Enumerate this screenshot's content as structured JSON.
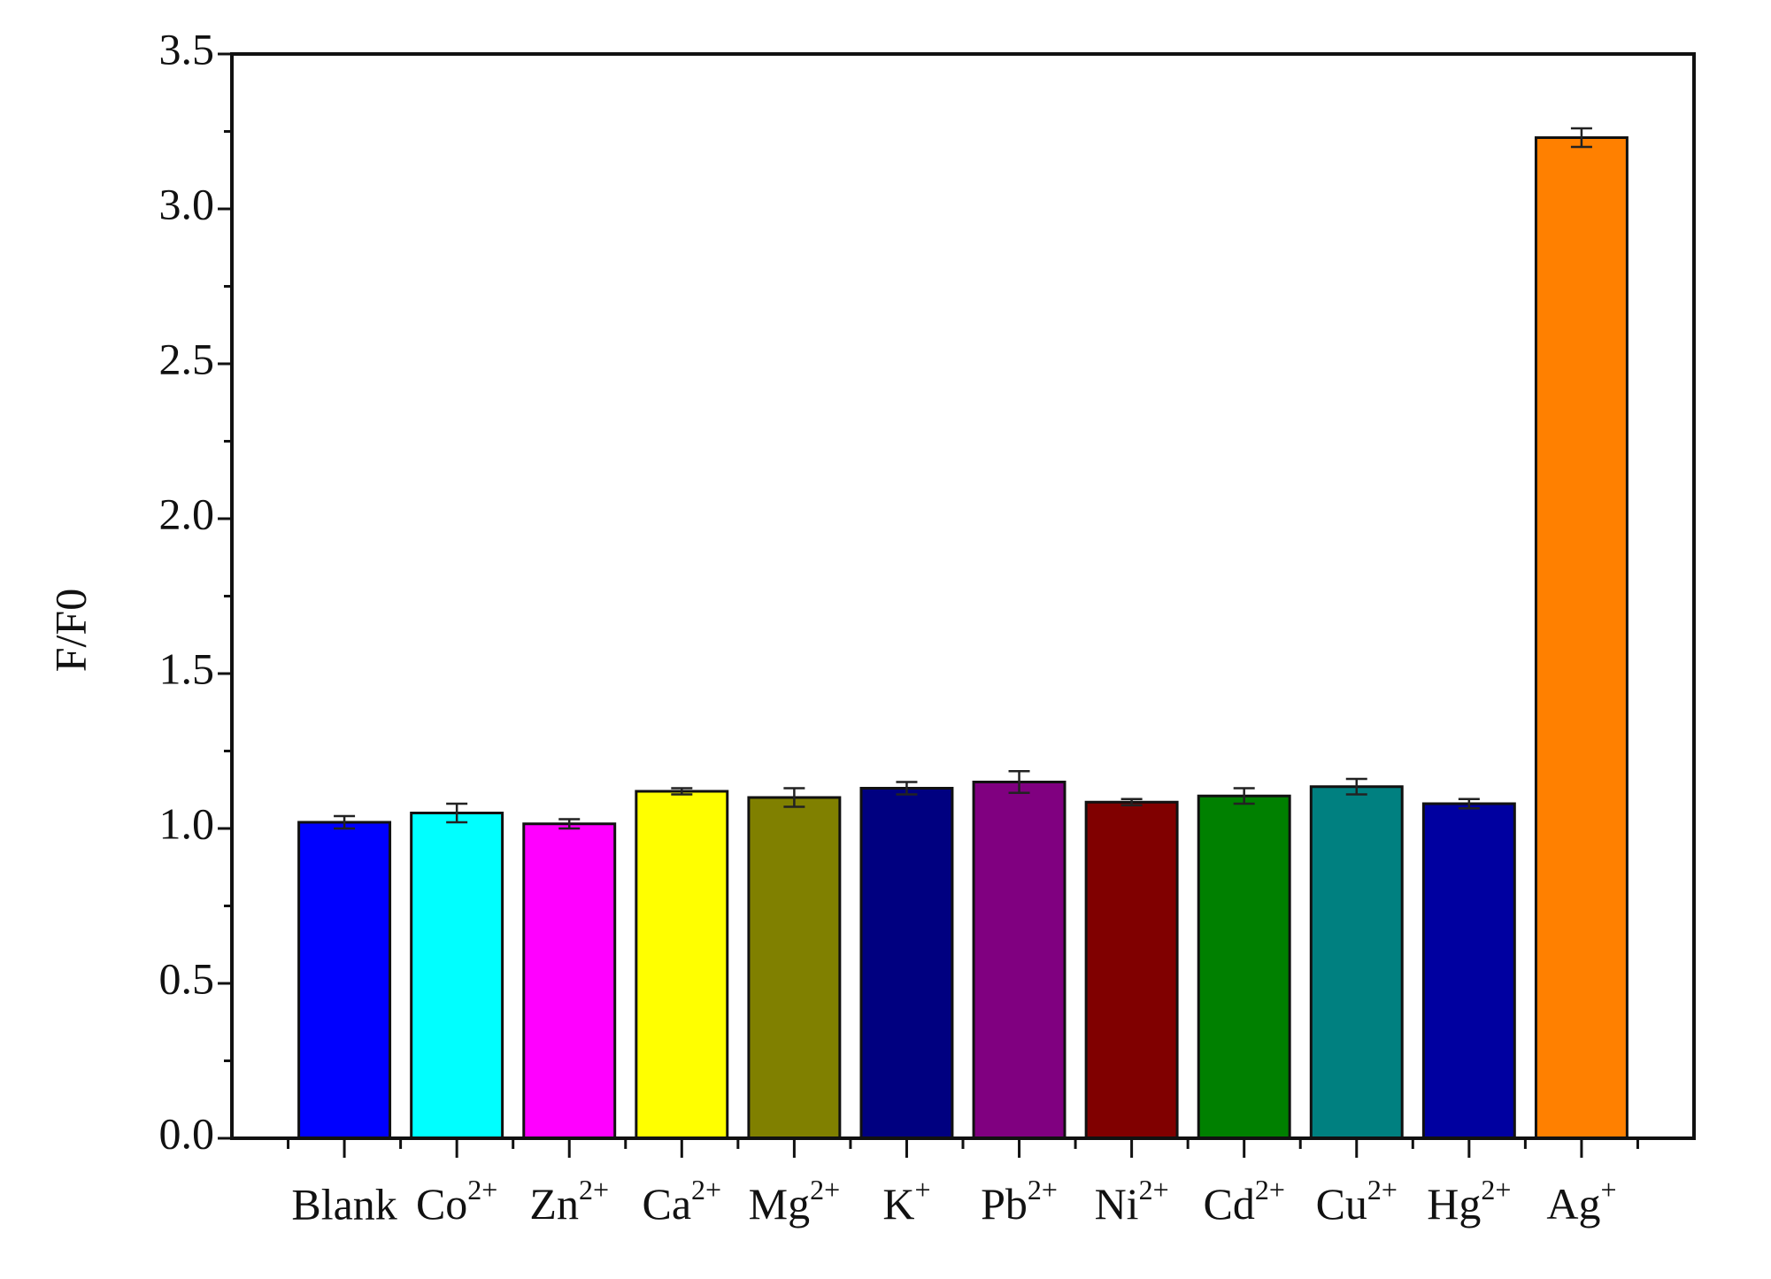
{
  "chart_data": {
    "type": "bar",
    "ylabel": "F/F0",
    "categories": [
      "Blank",
      "Co2+",
      "Zn2+",
      "Ca2+",
      "Mg2+",
      "K+",
      "Pb2+",
      "Ni2+",
      "Cd2+",
      "Cu2+",
      "Hg2+",
      "Ag+"
    ],
    "values": [
      1.02,
      1.05,
      1.015,
      1.12,
      1.1,
      1.13,
      1.15,
      1.085,
      1.105,
      1.135,
      1.08,
      3.23
    ],
    "errors": [
      0.02,
      0.03,
      0.015,
      0.01,
      0.03,
      0.02,
      0.035,
      0.01,
      0.025,
      0.025,
      0.015,
      0.03
    ],
    "colors": [
      "#0000ff",
      "#00ffff",
      "#ff00ff",
      "#ffff00",
      "#808000",
      "#000080",
      "#800080",
      "#800000",
      "#008000",
      "#008080",
      "#0000a0",
      "#ff8000"
    ],
    "ylim": [
      0,
      3.5
    ],
    "yticks": [
      {
        "value": 0,
        "label": "0.0"
      },
      {
        "value": 0.5,
        "label": "0.5"
      },
      {
        "value": 1,
        "label": "1.0"
      },
      {
        "value": 1.5,
        "label": "1.5"
      },
      {
        "value": 2,
        "label": "2.0"
      },
      {
        "value": 2.5,
        "label": "2.5"
      },
      {
        "value": 3,
        "label": "3.0"
      },
      {
        "value": 3.5,
        "label": "3.5"
      }
    ]
  }
}
